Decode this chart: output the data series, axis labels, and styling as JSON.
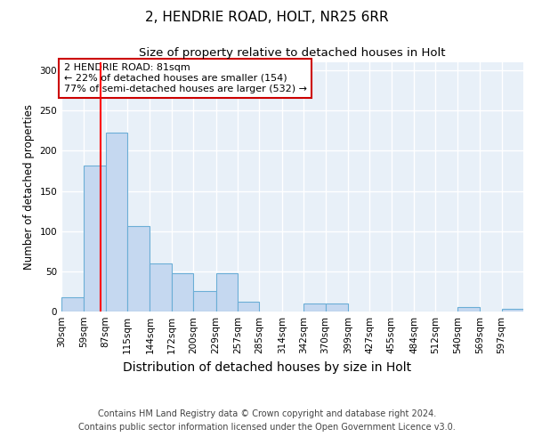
{
  "title": "2, HENDRIE ROAD, HOLT, NR25 6RR",
  "subtitle": "Size of property relative to detached houses in Holt",
  "xlabel": "Distribution of detached houses by size in Holt",
  "ylabel": "Number of detached properties",
  "categories": [
    "30sqm",
    "59sqm",
    "87sqm",
    "115sqm",
    "144sqm",
    "172sqm",
    "200sqm",
    "229sqm",
    "257sqm",
    "285sqm",
    "314sqm",
    "342sqm",
    "370sqm",
    "399sqm",
    "427sqm",
    "455sqm",
    "484sqm",
    "512sqm",
    "540sqm",
    "569sqm",
    "597sqm"
  ],
  "values": [
    18,
    182,
    222,
    106,
    60,
    48,
    25,
    48,
    12,
    0,
    0,
    10,
    10,
    0,
    0,
    0,
    0,
    0,
    5,
    0,
    3
  ],
  "bar_color": "#c5d8f0",
  "bar_edge_color": "#6baed6",
  "bar_linewidth": 0.8,
  "red_line_x": 81,
  "bin_edges": [
    30,
    59,
    87,
    115,
    144,
    172,
    200,
    229,
    257,
    285,
    314,
    342,
    370,
    399,
    427,
    455,
    484,
    512,
    540,
    569,
    597,
    625
  ],
  "annotation_text": "2 HENDRIE ROAD: 81sqm\n← 22% of detached houses are smaller (154)\n77% of semi-detached houses are larger (532) →",
  "annotation_box_color": "#ffffff",
  "annotation_box_edge": "#cc0000",
  "ylim": [
    0,
    310
  ],
  "yticks": [
    0,
    50,
    100,
    150,
    200,
    250,
    300
  ],
  "footer": "Contains HM Land Registry data © Crown copyright and database right 2024.\nContains public sector information licensed under the Open Government Licence v3.0.",
  "bg_color": "#e8f0f8",
  "grid_color": "#ffffff",
  "title_fontsize": 11,
  "subtitle_fontsize": 9.5,
  "xlabel_fontsize": 10,
  "ylabel_fontsize": 8.5,
  "tick_fontsize": 7.5,
  "annotation_fontsize": 8,
  "footer_fontsize": 7
}
